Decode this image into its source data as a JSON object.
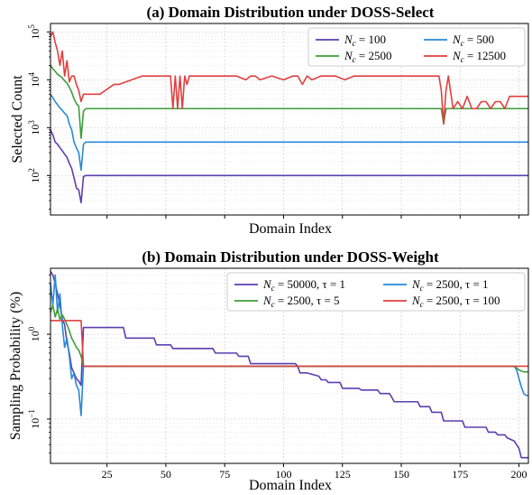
{
  "chart_data": [
    {
      "type": "line",
      "title": "(a) Domain Distribution under DOSS-Select",
      "xlabel": "Domain Index",
      "ylabel": "Selected Count",
      "yscale": "log",
      "xlim": [
        1,
        204
      ],
      "ylim": [
        15,
        150000
      ],
      "show_x_tick_labels": false,
      "yticks": [
        {
          "value": 100,
          "base": "10",
          "exp": "2"
        },
        {
          "value": 1000,
          "base": "10",
          "exp": "3"
        },
        {
          "value": 10000,
          "base": "10",
          "exp": "4"
        },
        {
          "value": 100000,
          "base": "10",
          "exp": "5"
        }
      ],
      "grid": true,
      "legend_position": "top-right",
      "series": [
        {
          "name": "Nc = 100",
          "label_sym": "N",
          "label_sub": "c",
          "label_rest": " = 100",
          "color": "#5b3fb0",
          "x": [
            1,
            2,
            3,
            4,
            5,
            6,
            7,
            8,
            9,
            10,
            11,
            12,
            13,
            14,
            15,
            16,
            40,
            80,
            120,
            160,
            204
          ],
          "y": [
            900,
            700,
            500,
            450,
            380,
            330,
            280,
            240,
            180,
            140,
            90,
            55,
            50,
            27,
            95,
            100,
            100,
            100,
            100,
            100,
            100
          ]
        },
        {
          "name": "Nc = 500",
          "label_sym": "N",
          "label_sub": "c",
          "label_rest": " = 500",
          "color": "#2a88d8",
          "x": [
            1,
            2,
            3,
            4,
            5,
            6,
            7,
            8,
            9,
            10,
            11,
            12,
            13,
            14,
            15,
            16,
            40,
            80,
            120,
            160,
            204
          ],
          "y": [
            5000,
            4200,
            3500,
            3000,
            2600,
            2300,
            2000,
            1800,
            1200,
            900,
            500,
            380,
            300,
            130,
            450,
            500,
            500,
            500,
            500,
            500,
            500
          ]
        },
        {
          "name": "Nc = 2500",
          "label_sym": "N",
          "label_sub": "c",
          "label_rest": " = 2500",
          "color": "#3c9e3a",
          "x": [
            1,
            2,
            3,
            4,
            5,
            6,
            7,
            8,
            9,
            10,
            11,
            12,
            13,
            14,
            15,
            16,
            40,
            80,
            120,
            160,
            167,
            168,
            169,
            170,
            204
          ],
          "y": [
            20000,
            17000,
            15000,
            13000,
            12000,
            11000,
            9500,
            8500,
            7000,
            5500,
            4000,
            3200,
            2800,
            600,
            2200,
            2500,
            2500,
            2500,
            2500,
            2500,
            2500,
            1200,
            2500,
            2500,
            2500
          ]
        },
        {
          "name": "Nc = 12500",
          "label_sym": "N",
          "label_sub": "c",
          "label_rest": " = 12500",
          "color": "#e04040",
          "x": [
            1,
            2,
            3,
            4,
            5,
            6,
            7,
            8,
            9,
            10,
            11,
            12,
            13,
            14,
            15,
            16,
            20,
            22,
            28,
            30,
            40,
            42,
            46,
            48,
            50,
            52,
            53,
            54,
            55,
            56,
            57,
            58,
            59,
            60,
            62,
            64,
            66,
            70,
            72,
            80,
            84,
            86,
            88,
            90,
            95,
            100,
            104,
            106,
            108,
            110,
            112,
            116,
            118,
            122,
            126,
            130,
            140,
            150,
            160,
            166,
            167,
            168,
            169,
            170,
            172,
            174,
            176,
            178,
            180,
            182,
            184,
            186,
            188,
            190,
            192,
            194,
            196,
            198,
            200,
            204
          ],
          "y": [
            80000,
            100000,
            60000,
            40000,
            20000,
            40000,
            12000,
            25000,
            9000,
            12000,
            12000,
            8000,
            6000,
            3500,
            5000,
            5000,
            5000,
            5000,
            8000,
            8000,
            12000,
            12000,
            12000,
            12000,
            12000,
            12000,
            2500,
            12000,
            2500,
            12000,
            2500,
            12000,
            8000,
            12000,
            12000,
            12000,
            12000,
            12000,
            12000,
            12000,
            10000,
            12000,
            12000,
            10000,
            12000,
            10000,
            12000,
            12000,
            8000,
            12000,
            10000,
            12000,
            12000,
            12000,
            10000,
            12000,
            12000,
            12000,
            12000,
            12000,
            6000,
            1200,
            6000,
            12000,
            2500,
            3500,
            2500,
            4500,
            2500,
            2500,
            3500,
            3500,
            2500,
            3500,
            3500,
            2500,
            4500,
            4500,
            4500,
            4500
          ]
        }
      ]
    },
    {
      "type": "line",
      "title": "(b) Domain Distribution under DOSS-Weight",
      "xlabel": "Domain Index",
      "ylabel": "Sampling Probability (%)",
      "yscale": "log",
      "xlim": [
        1,
        204
      ],
      "ylim": [
        0.03,
        6
      ],
      "xticks": [
        25,
        50,
        75,
        100,
        125,
        150,
        175,
        200
      ],
      "yticks": [
        {
          "value": 0.1,
          "base": "10",
          "exp": "−1"
        },
        {
          "value": 1,
          "base": "10",
          "exp": "0"
        }
      ],
      "grid": true,
      "legend_position": "top-right",
      "series": [
        {
          "name": "Nc = 50000, τ = 1",
          "label_sym": "N",
          "label_sub": "c",
          "label_rest": " = 50000, τ = 1",
          "color": "#5b3fb0",
          "x": [
            1,
            2,
            3,
            4,
            5,
            6,
            7,
            8,
            9,
            10,
            11,
            12,
            13,
            14,
            15,
            32,
            33,
            45,
            46,
            52,
            53,
            70,
            71,
            80,
            81,
            85,
            86,
            105,
            106,
            107,
            110,
            115,
            116,
            118,
            119,
            124,
            125,
            132,
            133,
            140,
            141,
            145,
            146,
            147,
            157,
            158,
            162,
            163,
            167,
            168,
            176,
            177,
            186,
            187,
            190,
            191,
            194,
            195,
            198,
            200,
            201,
            204
          ],
          "y": [
            5.5,
            5,
            4,
            3,
            2.2,
            1.5,
            1.3,
            0.8,
            0.6,
            0.4,
            0.35,
            0.3,
            0.28,
            0.25,
            1.2,
            1.2,
            0.9,
            0.9,
            0.75,
            0.75,
            0.68,
            0.68,
            0.6,
            0.6,
            0.55,
            0.55,
            0.45,
            0.45,
            0.42,
            0.35,
            0.35,
            0.32,
            0.29,
            0.29,
            0.27,
            0.27,
            0.23,
            0.23,
            0.22,
            0.22,
            0.2,
            0.2,
            0.18,
            0.16,
            0.16,
            0.14,
            0.14,
            0.12,
            0.12,
            0.095,
            0.095,
            0.08,
            0.08,
            0.07,
            0.07,
            0.065,
            0.065,
            0.06,
            0.055,
            0.045,
            0.035,
            0.035
          ]
        },
        {
          "name": "Nc = 2500, τ = 1",
          "label_sym": "N",
          "label_sub": "c",
          "label_rest": " = 2500, τ = 1",
          "color": "#2a88d8",
          "x": [
            1,
            2,
            3,
            4,
            5,
            6,
            7,
            8,
            9,
            10,
            11,
            12,
            13,
            14,
            15,
            16,
            100,
            198,
            199,
            200,
            201,
            202,
            203,
            204
          ],
          "y": [
            4,
            2.2,
            5,
            1.8,
            3,
            1.3,
            0.7,
            0.9,
            0.55,
            0.3,
            0.35,
            0.25,
            0.22,
            0.11,
            0.42,
            0.42,
            0.42,
            0.42,
            0.38,
            0.3,
            0.24,
            0.2,
            0.19,
            0.19
          ]
        },
        {
          "name": "Nc = 2500, τ = 5",
          "label_sym": "N",
          "label_sub": "c",
          "label_rest": " = 2500, τ = 5",
          "color": "#3c9e3a",
          "x": [
            1,
            2,
            3,
            4,
            5,
            6,
            7,
            8,
            9,
            10,
            11,
            12,
            13,
            14,
            15,
            16,
            100,
            198,
            200,
            202,
            204
          ],
          "y": [
            1.8,
            2.2,
            1.6,
            2,
            1.5,
            1.7,
            1.5,
            1.3,
            1.1,
            0.9,
            0.8,
            0.7,
            0.65,
            0.55,
            0.42,
            0.42,
            0.42,
            0.42,
            0.38,
            0.36,
            0.36
          ]
        },
        {
          "name": "Nc = 2500, τ = 100",
          "label_sym": "N",
          "label_sub": "c",
          "label_rest": " = 2500, τ = 100",
          "color": "#e04040",
          "x": [
            1,
            2,
            3,
            4,
            5,
            6,
            7,
            8,
            9,
            10,
            11,
            12,
            13,
            14,
            15,
            16,
            100,
            150,
            204
          ],
          "y": [
            1.45,
            1.45,
            1.45,
            1.45,
            1.45,
            1.45,
            1.45,
            1.45,
            1.45,
            1.45,
            1.45,
            1.45,
            1.45,
            1.45,
            0.42,
            0.42,
            0.42,
            0.42,
            0.42
          ]
        }
      ]
    }
  ]
}
